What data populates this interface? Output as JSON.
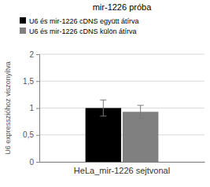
{
  "chart_data": {
    "type": "bar",
    "title": "mir-1226 próba",
    "x_label": "HeLa_mir-1226 sejtvonal",
    "y_label": "U6 expresszióhoz viszonyítva",
    "categories": [
      "HeLa_mir-1226 sejtvonal"
    ],
    "series": [
      {
        "name": "U6 és mir-1226 cDNS együtt átírva",
        "color": "#000000",
        "values": [
          1.0
        ],
        "errors": [
          0.15
        ]
      },
      {
        "name": "U6 és mir-1226 cDNS külön átírva",
        "color": "#808080",
        "values": [
          0.93
        ],
        "errors": [
          0.12
        ]
      }
    ],
    "ylim": [
      0,
      2
    ],
    "yticks": [
      0,
      {
        "value": 0.5,
        "label": "0,5"
      },
      1,
      {
        "value": 1.5,
        "label": "1,5"
      },
      2
    ],
    "grid": true,
    "legend": "top-left"
  }
}
